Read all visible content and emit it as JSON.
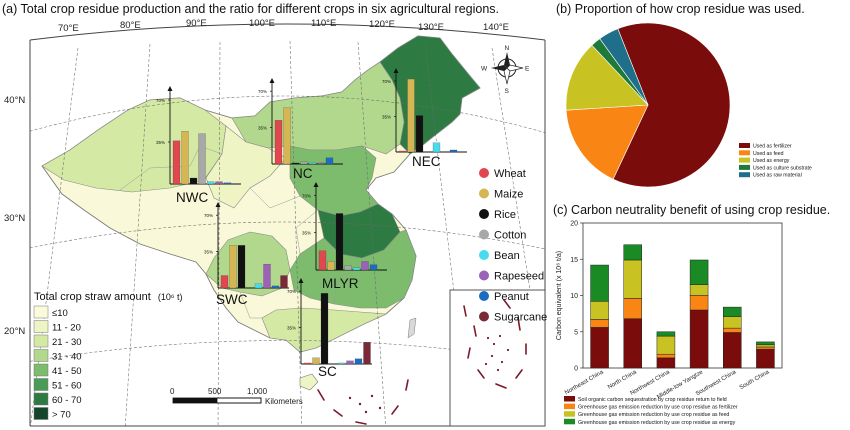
{
  "panels": {
    "a": {
      "title": "(a) Total crop residue production and the ratio for different crops in six agricultural regions."
    },
    "b": {
      "title": "(b) Proportion of how crop residue was used."
    },
    "c": {
      "title": "(c) Carbon neutrality benefit of using crop residue."
    }
  },
  "map": {
    "lon_labels": [
      "70°E",
      "80°E",
      "90°E",
      "100°E",
      "110°E",
      "120°E",
      "130°E",
      "140°E"
    ],
    "lat_labels": [
      "40°N",
      "30°N",
      "20°N"
    ],
    "straw_legend": {
      "title": "Total crop straw amount",
      "unit": "(10⁶ t)",
      "classes": [
        {
          "label": "≤10",
          "color": "#fbfbdc"
        },
        {
          "label": "11 - 20",
          "color": "#eef4c3"
        },
        {
          "label": "21 - 30",
          "color": "#d4eaa4"
        },
        {
          "label": "31 - 40",
          "color": "#b1d88c"
        },
        {
          "label": "41 - 50",
          "color": "#7cbc6c"
        },
        {
          "label": "51 - 60",
          "color": "#4a9b55"
        },
        {
          "label": "60 - 70",
          "color": "#2d7b43"
        },
        {
          "label": "> 70",
          "color": "#14472a"
        }
      ]
    },
    "crop_legend": [
      {
        "label": "Wheat",
        "color": "#e0474f"
      },
      {
        "label": "Maize",
        "color": "#d6b554"
      },
      {
        "label": "Rice",
        "color": "#111111"
      },
      {
        "label": "Cotton",
        "color": "#a8a8a8"
      },
      {
        "label": "Bean",
        "color": "#46dcee"
      },
      {
        "label": "Rapeseed",
        "color": "#9b62b8"
      },
      {
        "label": "Peanut",
        "color": "#1d6cc4"
      },
      {
        "label": "Sugarcane",
        "color": "#7a2a36"
      }
    ],
    "regions": [
      {
        "name": "NWC",
        "tick_low": "35%",
        "tick_high": "70%",
        "shares": [
          0.36,
          0.44,
          0.05,
          0.42,
          0.02,
          0.02,
          0.01,
          0
        ]
      },
      {
        "name": "NC",
        "tick_low": "35%",
        "tick_high": "70%",
        "shares": [
          0.42,
          0.54,
          0.01,
          0.02,
          0.01,
          0.01,
          0.06,
          0
        ]
      },
      {
        "name": "NEC",
        "tick_low": "35%",
        "tick_high": "70%",
        "shares": [
          0.01,
          0.72,
          0.36,
          0,
          0.09,
          0,
          0.02,
          0
        ]
      },
      {
        "name": "SWC",
        "tick_low": "35%",
        "tick_high": "70%",
        "shares": [
          0.12,
          0.41,
          0.41,
          0,
          0.04,
          0.23,
          0.02,
          0.12
        ]
      },
      {
        "name": "MLYR",
        "tick_low": "35%",
        "tick_high": "70%",
        "shares": [
          0.18,
          0.08,
          0.53,
          0.04,
          0.02,
          0.08,
          0.05,
          0
        ]
      },
      {
        "name": "SC",
        "tick_low": "35%",
        "tick_high": "70%",
        "shares": [
          0.01,
          0.06,
          0.68,
          0,
          0.01,
          0.03,
          0.05,
          0.21
        ]
      }
    ],
    "scalebar": {
      "labels": [
        "0",
        "500",
        "1,000"
      ],
      "unit": "Kilometers"
    },
    "compass": {
      "n": "N",
      "s": "S",
      "e": "E",
      "w": "W"
    }
  },
  "chart_data": [
    {
      "type": "pie",
      "title": "(b) Proportion of how crop residue was used.",
      "labels": [
        "Used as fertilizer",
        "Used as feed",
        "Used as energy",
        "Used as culture substrate",
        "Used as raw material"
      ],
      "values": [
        0.63,
        0.17,
        0.14,
        0.02,
        0.04
      ],
      "colors": [
        "#7b0c0c",
        "#f98514",
        "#c8c222",
        "#1f7a3a",
        "#1f6f8b"
      ],
      "legend": "bottom-right"
    },
    {
      "type": "bar",
      "stacked": true,
      "title": "(c) Carbon neutrality benefit of using crop residue.",
      "ylabel": "Carbon equivalent (x 10⁶ t/a)",
      "ylim": [
        0,
        20
      ],
      "yticks": [
        0,
        5,
        10,
        15,
        20
      ],
      "categories": [
        "Northeast China",
        "North China",
        "Northwest China",
        "Middle-low Yangtze",
        "Southwest China",
        "South China"
      ],
      "series": [
        {
          "name": "Soil organic carbon sequestration by crop residue return to field",
          "color": "#7b0c0c",
          "values": [
            5.6,
            6.8,
            1.4,
            8.0,
            4.9,
            2.6
          ]
        },
        {
          "name": "Greenhouse gas emission reduction by use crop residue as fertilizer",
          "color": "#f98514",
          "values": [
            1.1,
            2.8,
            0.5,
            2.0,
            0.6,
            0.3
          ]
        },
        {
          "name": "Greenhouse gas emission reduction by use crop residue as feed",
          "color": "#c8c222",
          "values": [
            2.5,
            5.3,
            2.5,
            1.5,
            1.6,
            0.3
          ]
        },
        {
          "name": "Greenhouse gas emission reduction by use crop residue as energy",
          "color": "#1a8a25",
          "values": [
            5.0,
            2.1,
            0.6,
            3.4,
            1.3,
            0.4
          ]
        }
      ],
      "legend": "bottom"
    }
  ]
}
